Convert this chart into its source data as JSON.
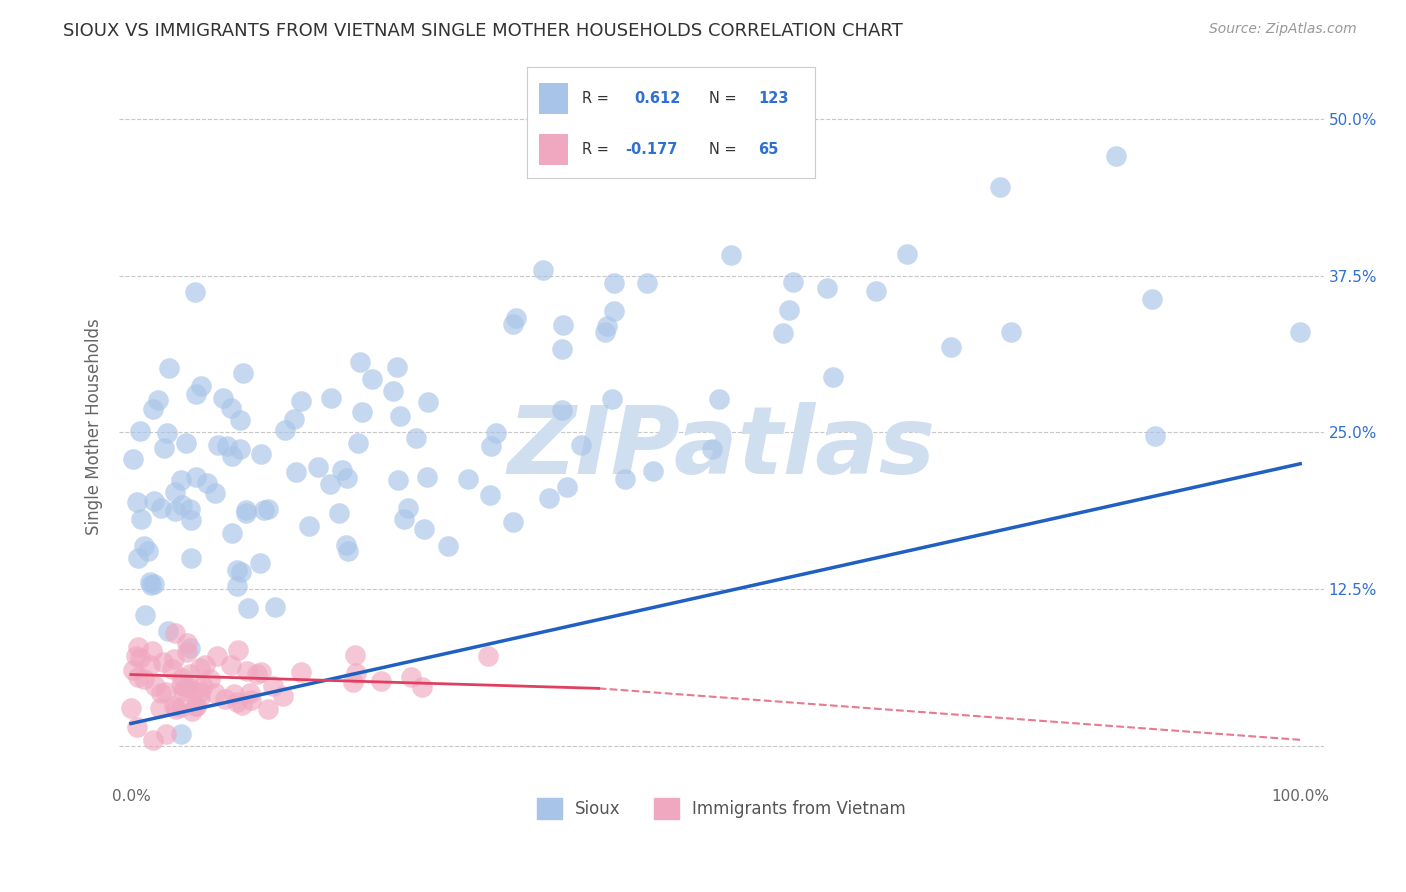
{
  "title": "SIOUX VS IMMIGRANTS FROM VIETNAM SINGLE MOTHER HOUSEHOLDS CORRELATION CHART",
  "source": "Source: ZipAtlas.com",
  "ylabel": "Single Mother Households",
  "ytick_labels": [
    "",
    "12.5%",
    "25.0%",
    "37.5%",
    "50.0%"
  ],
  "ytick_values": [
    0.0,
    0.125,
    0.25,
    0.375,
    0.5
  ],
  "xlim": [
    0.0,
    1.0
  ],
  "ylim": [
    -0.03,
    0.54
  ],
  "sioux_R": 0.612,
  "sioux_N": 123,
  "vietnam_R": -0.177,
  "vietnam_N": 65,
  "sioux_color": "#a8c4e8",
  "vietnam_color": "#f0a8c0",
  "sioux_line_color": "#2060c0",
  "vietnam_line_color": "#e04060",
  "background_color": "#ffffff",
  "grid_color": "#c8c8c8",
  "watermark": "ZIPatlas",
  "watermark_color": "#d0dff0",
  "title_fontsize": 13,
  "legend_R_color": "#3070d0",
  "legend_N_color": "#3070d0",
  "right_tick_color": "#3070d0",
  "sioux_seed": 42,
  "vietnam_seed": 7
}
